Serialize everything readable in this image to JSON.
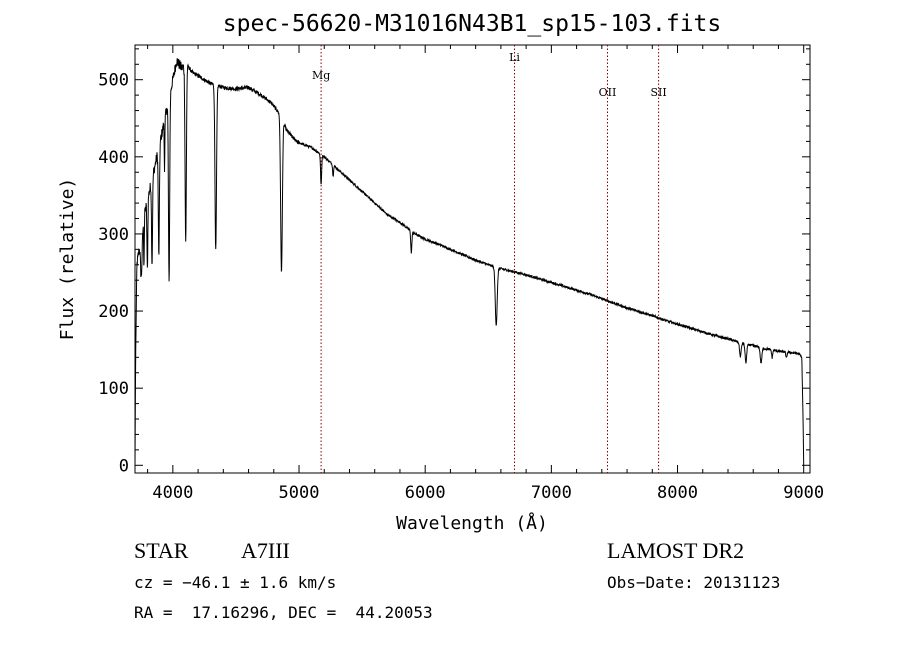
{
  "chart_data": {
    "type": "line",
    "title": "spec-56620-M31016N43B1_sp15-103.fits",
    "xlabel": "Wavelength (Å)",
    "ylabel": "Flux (relative)",
    "xlim": [
      3700,
      9050
    ],
    "ylim": [
      -10,
      545
    ],
    "xticks": [
      4000,
      5000,
      6000,
      7000,
      8000,
      9000
    ],
    "yticks": [
      0,
      100,
      200,
      300,
      400,
      500
    ],
    "grid": false,
    "line_color": "#000000",
    "marker_color": "#8b0000",
    "line_markers": [
      {
        "label": "Mg",
        "x": 5175
      },
      {
        "label": "Li",
        "x": 6708
      },
      {
        "label": "OII",
        "x": 7445
      },
      {
        "label": "SII",
        "x": 7850
      }
    ],
    "series": [
      {
        "continuum": [
          [
            3700,
            0
          ],
          [
            3705,
            140
          ],
          [
            3715,
            260
          ],
          [
            3750,
            300
          ],
          [
            3780,
            330
          ],
          [
            3820,
            360
          ],
          [
            3860,
            390
          ],
          [
            3900,
            420
          ],
          [
            3950,
            460
          ],
          [
            4000,
            500
          ],
          [
            4030,
            525
          ],
          [
            4070,
            515
          ],
          [
            4110,
            520
          ],
          [
            4150,
            510
          ],
          [
            4200,
            505
          ],
          [
            4300,
            495
          ],
          [
            4400,
            490
          ],
          [
            4500,
            488
          ],
          [
            4600,
            490
          ],
          [
            4700,
            480
          ],
          [
            4780,
            470
          ],
          [
            4850,
            455
          ],
          [
            4900,
            435
          ],
          [
            4950,
            425
          ],
          [
            5000,
            418
          ],
          [
            5100,
            412
          ],
          [
            5200,
            400
          ],
          [
            5300,
            385
          ],
          [
            5400,
            370
          ],
          [
            5500,
            355
          ],
          [
            5600,
            340
          ],
          [
            5700,
            325
          ],
          [
            5800,
            315
          ],
          [
            5900,
            302
          ],
          [
            6000,
            293
          ],
          [
            6100,
            287
          ],
          [
            6200,
            280
          ],
          [
            6300,
            273
          ],
          [
            6400,
            266
          ],
          [
            6500,
            260
          ],
          [
            6600,
            255
          ],
          [
            6700,
            251
          ],
          [
            6800,
            247
          ],
          [
            6900,
            242
          ],
          [
            7000,
            237
          ],
          [
            7100,
            232
          ],
          [
            7200,
            227
          ],
          [
            7300,
            222
          ],
          [
            7400,
            216
          ],
          [
            7500,
            210
          ],
          [
            7600,
            204
          ],
          [
            7700,
            199
          ],
          [
            7800,
            194
          ],
          [
            7900,
            188
          ],
          [
            8000,
            183
          ],
          [
            8100,
            178
          ],
          [
            8200,
            173
          ],
          [
            8300,
            168
          ],
          [
            8400,
            164
          ],
          [
            8500,
            159
          ],
          [
            8600,
            155
          ],
          [
            8700,
            151
          ],
          [
            8800,
            148
          ],
          [
            8900,
            146
          ],
          [
            8960,
            145
          ],
          [
            8985,
            140
          ],
          [
            8995,
            60
          ],
          [
            9000,
            0
          ]
        ],
        "absorption": [
          [
            3750,
            15,
            55
          ],
          [
            3771,
            6,
            60
          ],
          [
            3798,
            8,
            90
          ],
          [
            3835,
            9,
            110
          ],
          [
            3889,
            10,
            140
          ],
          [
            3934,
            6,
            60
          ],
          [
            3970,
            11,
            240
          ],
          [
            4102,
            12,
            230
          ],
          [
            4340,
            14,
            215
          ],
          [
            4861,
            16,
            200
          ],
          [
            5175,
            10,
            40
          ],
          [
            5270,
            8,
            15
          ],
          [
            5890,
            10,
            28
          ],
          [
            6563,
            18,
            75
          ],
          [
            8498,
            15,
            18
          ],
          [
            8542,
            15,
            24
          ],
          [
            8662,
            15,
            20
          ],
          [
            8750,
            10,
            10
          ],
          [
            8863,
            10,
            8
          ]
        ]
      }
    ]
  },
  "info": {
    "object_class": "STAR",
    "subclass": "A7III",
    "survey": "LAMOST DR2",
    "cz": "cz = −46.1 ± 1.6 km/s",
    "obs_date": "Obs−Date: 20131123",
    "coords": "RA =  17.16296, DEC =  44.20053"
  }
}
